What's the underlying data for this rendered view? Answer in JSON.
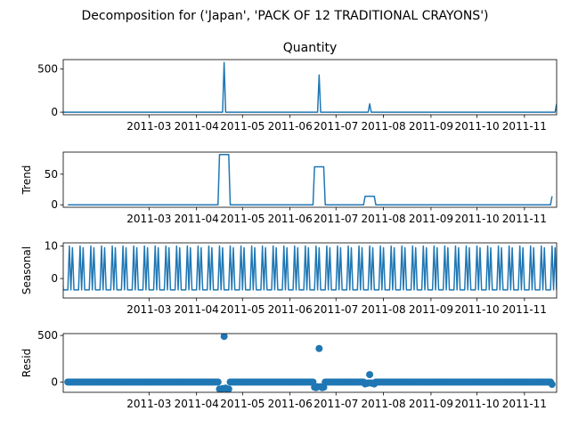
{
  "suptitle": "Decomposition for ('Japan', 'PACK OF 12 TRADITIONAL CRAYONS')",
  "colors": {
    "line": "#1f77b4",
    "axis": "#000000",
    "background": "#ffffff"
  },
  "chart_data": [
    {
      "type": "line",
      "title": "Quantity",
      "ylabel": "",
      "xlim": [
        "2011-01-04",
        "2011-11-22"
      ],
      "ylim": [
        -30,
        610
      ],
      "yticks": [
        0,
        500
      ],
      "xticks": [
        "2011-03",
        "2011-04",
        "2011-05",
        "2011-06",
        "2011-07",
        "2011-08",
        "2011-09",
        "2011-10",
        "2011-11"
      ],
      "series": [
        {
          "points": [
            [
              "2011-01-04",
              0
            ],
            [
              "2011-04-18",
              0
            ],
            [
              "2011-04-19",
              576
            ],
            [
              "2011-04-20",
              0
            ],
            [
              "2011-06-19",
              0
            ],
            [
              "2011-06-20",
              432
            ],
            [
              "2011-06-21",
              0
            ],
            [
              "2011-07-22",
              0
            ],
            [
              "2011-07-23",
              96
            ],
            [
              "2011-07-24",
              0
            ],
            [
              "2011-11-21",
              0
            ],
            [
              "2011-11-22",
              96
            ]
          ]
        }
      ]
    },
    {
      "type": "line",
      "title": "",
      "ylabel": "Trend",
      "xlim": [
        "2011-01-04",
        "2011-11-22"
      ],
      "ylim": [
        -4,
        86
      ],
      "yticks": [
        0,
        50
      ],
      "xticks": [
        "2011-03",
        "2011-04",
        "2011-05",
        "2011-06",
        "2011-07",
        "2011-08",
        "2011-09",
        "2011-10",
        "2011-11"
      ],
      "series": [
        {
          "points": [
            [
              "2011-01-07",
              0
            ],
            [
              "2011-04-15",
              0
            ],
            [
              "2011-04-16",
              82
            ],
            [
              "2011-04-22",
              82
            ],
            [
              "2011-04-23",
              0
            ],
            [
              "2011-06-16",
              0
            ],
            [
              "2011-06-17",
              62
            ],
            [
              "2011-06-23",
              62
            ],
            [
              "2011-06-24",
              0
            ],
            [
              "2011-07-19",
              0
            ],
            [
              "2011-07-20",
              14
            ],
            [
              "2011-07-26",
              14
            ],
            [
              "2011-07-27",
              0
            ],
            [
              "2011-11-18",
              0
            ],
            [
              "2011-11-19",
              14
            ]
          ]
        }
      ]
    },
    {
      "type": "line",
      "title": "",
      "ylabel": "Seasonal",
      "xlim": [
        "2011-01-04",
        "2011-11-22"
      ],
      "ylim": [
        -6,
        11
      ],
      "yticks": [
        0,
        10
      ],
      "xticks": [
        "2011-03",
        "2011-04",
        "2011-05",
        "2011-06",
        "2011-07",
        "2011-08",
        "2011-09",
        "2011-10",
        "2011-11"
      ],
      "period_days": 7,
      "series": [
        {
          "weekly_pattern": [
            10,
            -3.5,
            9.5,
            -3.5,
            -3.5,
            -3.5,
            -3.5
          ]
        }
      ]
    },
    {
      "type": "scatter",
      "title": "",
      "ylabel": "Resid",
      "xlim": [
        "2011-01-04",
        "2011-11-22"
      ],
      "ylim": [
        -110,
        520
      ],
      "yticks": [
        0,
        500
      ],
      "xticks": [
        "2011-03",
        "2011-04",
        "2011-05",
        "2011-06",
        "2011-07",
        "2011-08",
        "2011-09",
        "2011-10",
        "2011-11"
      ],
      "baseline": {
        "start": "2011-01-07",
        "end": "2011-11-19",
        "value": 0
      },
      "outliers": [
        [
          "2011-04-16",
          -75
        ],
        [
          "2011-04-17",
          -80
        ],
        [
          "2011-04-18",
          -70
        ],
        [
          "2011-04-19",
          490
        ],
        [
          "2011-04-20",
          -65
        ],
        [
          "2011-04-21",
          -80
        ],
        [
          "2011-04-22",
          -75
        ],
        [
          "2011-06-17",
          -55
        ],
        [
          "2011-06-18",
          -60
        ],
        [
          "2011-06-19",
          -50
        ],
        [
          "2011-06-20",
          360
        ],
        [
          "2011-06-21",
          -50
        ],
        [
          "2011-06-22",
          -60
        ],
        [
          "2011-06-23",
          -55
        ],
        [
          "2011-07-20",
          -20
        ],
        [
          "2011-07-21",
          -15
        ],
        [
          "2011-07-22",
          -10
        ],
        [
          "2011-07-23",
          80
        ],
        [
          "2011-07-24",
          -10
        ],
        [
          "2011-07-25",
          -15
        ],
        [
          "2011-07-26",
          -20
        ],
        [
          "2011-11-19",
          -25
        ]
      ]
    }
  ]
}
